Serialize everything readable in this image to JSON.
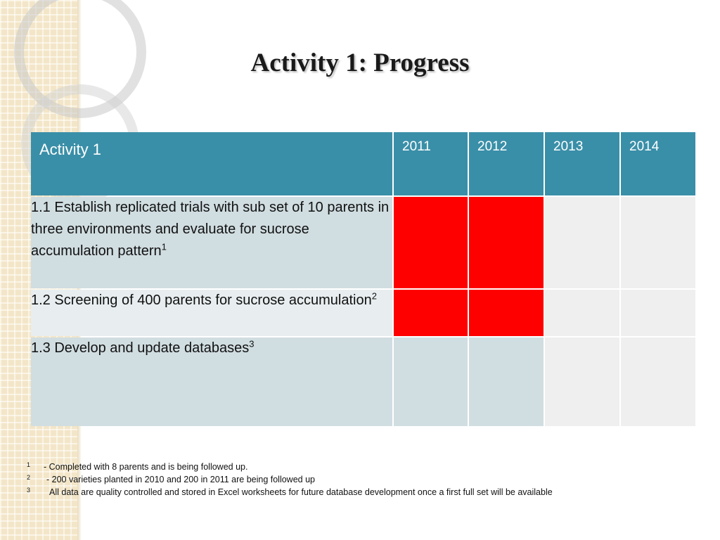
{
  "slide": {
    "title": "Activity 1: Progress"
  },
  "table": {
    "header": {
      "activity": "Activity 1",
      "years": [
        "2011",
        "2012",
        "2013",
        "2014"
      ]
    },
    "rows": [
      {
        "label": "1.1 Establish replicated trials with sub set of 10 parents in three environments and evaluate for sucrose accumulation pattern",
        "note": "1",
        "progress": [
          true,
          true,
          false,
          false
        ]
      },
      {
        "label": "1.2 Screening of 400 parents for sucrose accumulation",
        "note": "2",
        "progress": [
          true,
          true,
          false,
          false
        ]
      },
      {
        "label": "1.3 Develop and update databases",
        "note": "3",
        "progress": [
          false,
          false,
          false,
          false
        ]
      }
    ],
    "colors": {
      "header": "#3a8fa8",
      "completed": "#ff0000",
      "row_dark": "#d0dde1",
      "row_light": "#e8eef0"
    }
  },
  "footnotes": [
    {
      "num": "1",
      "text": "- Completed with 8 parents and is being followed up."
    },
    {
      "num": "2",
      "text": "- 200 varieties planted in 2010 and 200 in 2011 are being followed up"
    },
    {
      "num": "3",
      "text": "All data are quality controlled and stored in Excel worksheets for future database development once a first full set will be available"
    }
  ]
}
